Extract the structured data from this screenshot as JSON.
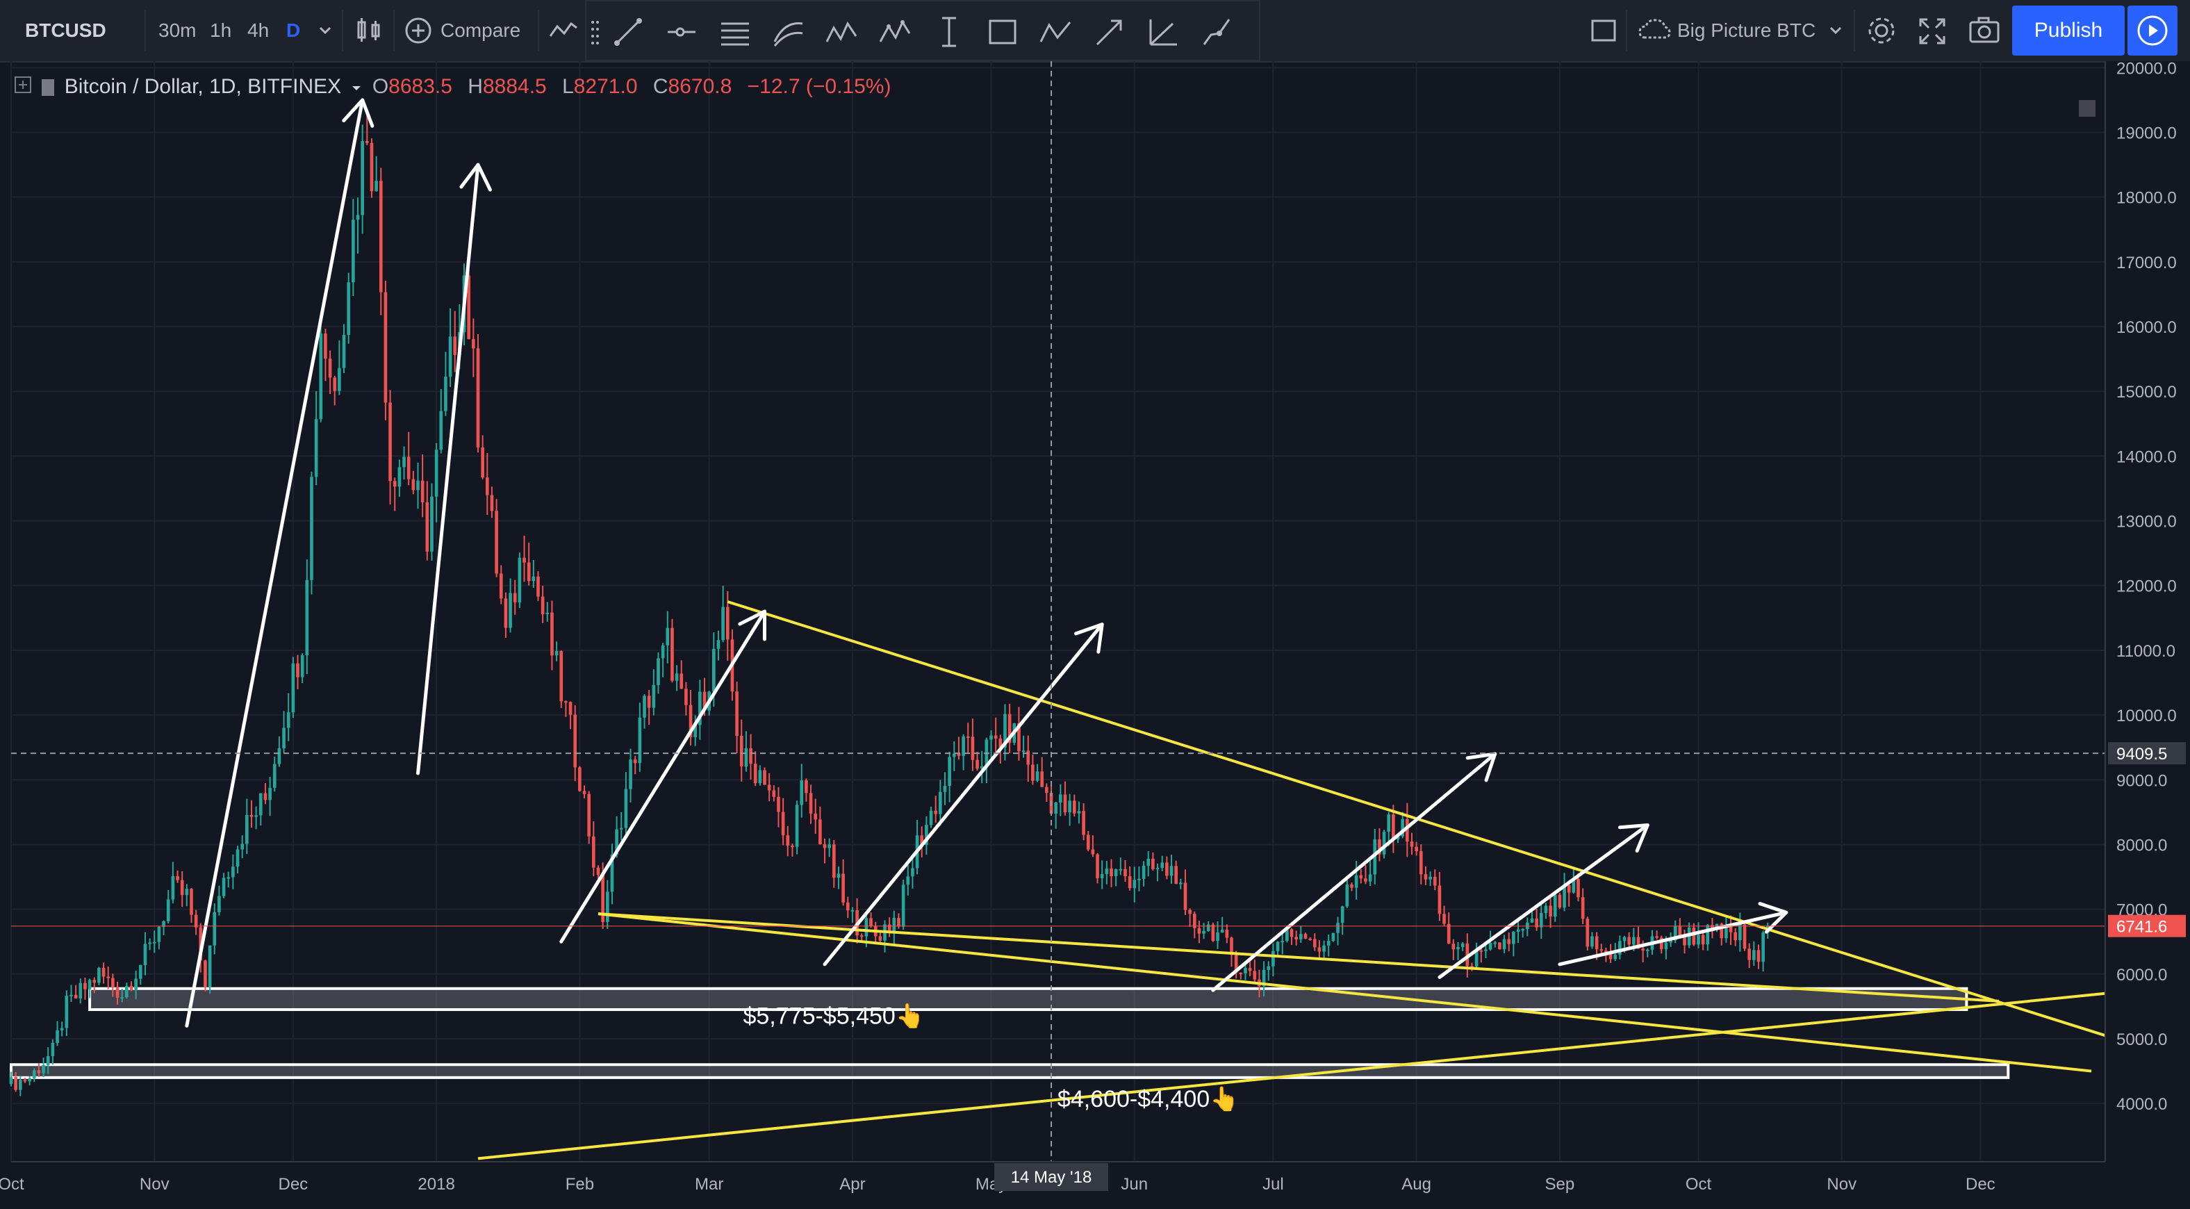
{
  "toolbar": {
    "symbol": "BTCUSD",
    "intervals": [
      "30m",
      "1h",
      "4h",
      "D"
    ],
    "active_interval": "D",
    "compare_label": "Compare",
    "layout_name": "Big Picture BTC",
    "publish_label": "Publish",
    "drawing_tools": [
      "trend-line-icon",
      "horizontal-ray-icon",
      "parallel-channel-icon",
      "fib-retracement-icon",
      "xabcd-pattern-icon",
      "elliott-wave-icon",
      "date-range-icon",
      "rectangle-icon",
      "abcd-pattern-icon",
      "arrow-icon",
      "gann-icon",
      "brush-icon"
    ]
  },
  "legend": {
    "title": "Bitcoin / Dollar, 1D, BITFINEX",
    "o_label": "O",
    "o_value": "8683.5",
    "h_label": "H",
    "h_value": "8884.5",
    "l_label": "L",
    "l_value": "8271.0",
    "c_label": "C",
    "c_value": "8670.8",
    "change": "−12.7 (−0.15%)"
  },
  "colors": {
    "background": "#131722",
    "up_candle": "#26a69a",
    "down_candle": "#ef5350",
    "trendline": "#f5e642",
    "arrow": "#ffffff",
    "accent": "#2962ff"
  },
  "chart_data": {
    "type": "candlestick",
    "title": "Bitcoin / Dollar, 1D, BITFINEX",
    "x_type": "date",
    "xlim": [
      "2017-10-01",
      "2018-12-28"
    ],
    "ylim": [
      3100,
      20100
    ],
    "y_ticks": [
      4000,
      5000,
      6000,
      7000,
      8000,
      9000,
      10000,
      11000,
      12000,
      13000,
      14000,
      15000,
      16000,
      17000,
      18000,
      19000,
      20000
    ],
    "y_tick_labels": [
      "4000.0",
      "5000.0",
      "6000.0",
      "7000.0",
      "8000.0",
      "9000.0",
      "10000.0",
      "11000.0",
      "12000.0",
      "13000.0",
      "14000.0",
      "15000.0",
      "16000.0",
      "17000.0",
      "18000.0",
      "19000.0",
      "20000.0"
    ],
    "x_ticks": [
      {
        "date": "2017-10-01",
        "label": "Oct"
      },
      {
        "date": "2017-11-01",
        "label": "Nov"
      },
      {
        "date": "2017-12-01",
        "label": "Dec"
      },
      {
        "date": "2018-01-01",
        "label": "2018"
      },
      {
        "date": "2018-02-01",
        "label": "Feb"
      },
      {
        "date": "2018-03-01",
        "label": "Mar"
      },
      {
        "date": "2018-04-01",
        "label": "Apr"
      },
      {
        "date": "2018-05-01",
        "label": "May"
      },
      {
        "date": "2018-06-01",
        "label": "Jun"
      },
      {
        "date": "2018-07-01",
        "label": "Jul"
      },
      {
        "date": "2018-08-01",
        "label": "Aug"
      },
      {
        "date": "2018-09-01",
        "label": "Sep"
      },
      {
        "date": "2018-10-01",
        "label": "Oct"
      },
      {
        "date": "2018-11-01",
        "label": "Nov"
      },
      {
        "date": "2018-12-01",
        "label": "Dec"
      }
    ],
    "price_path": [
      [
        "2017-10-01",
        4300
      ],
      [
        "2017-10-05",
        4400
      ],
      [
        "2017-10-10",
        4800
      ],
      [
        "2017-10-13",
        5500
      ],
      [
        "2017-10-20",
        6000
      ],
      [
        "2017-10-25",
        5700
      ],
      [
        "2017-10-31",
        6400
      ],
      [
        "2017-11-05",
        7300
      ],
      [
        "2017-11-08",
        7200
      ],
      [
        "2017-11-12",
        5900
      ],
      [
        "2017-11-15",
        7300
      ],
      [
        "2017-11-20",
        8200
      ],
      [
        "2017-11-25",
        8700
      ],
      [
        "2017-11-29",
        10000
      ],
      [
        "2017-12-03",
        11200
      ],
      [
        "2017-12-07",
        16000
      ],
      [
        "2017-12-10",
        15000
      ],
      [
        "2017-12-13",
        17000
      ],
      [
        "2017-12-17",
        19200
      ],
      [
        "2017-12-19",
        18000
      ],
      [
        "2017-12-22",
        13800
      ],
      [
        "2017-12-25",
        14000
      ],
      [
        "2017-12-30",
        12800
      ],
      [
        "2018-01-03",
        15000
      ],
      [
        "2018-01-07",
        16800
      ],
      [
        "2018-01-10",
        14500
      ],
      [
        "2018-01-16",
        11200
      ],
      [
        "2018-01-20",
        12700
      ],
      [
        "2018-01-25",
        11300
      ],
      [
        "2018-02-01",
        9100
      ],
      [
        "2018-02-06",
        6900
      ],
      [
        "2018-02-10",
        8500
      ],
      [
        "2018-02-15",
        10100
      ],
      [
        "2018-02-20",
        11100
      ],
      [
        "2018-02-25",
        9600
      ],
      [
        "2018-03-04",
        11400
      ],
      [
        "2018-03-08",
        9300
      ],
      [
        "2018-03-13",
        9100
      ],
      [
        "2018-03-18",
        7900
      ],
      [
        "2018-03-21",
        8800
      ],
      [
        "2018-03-26",
        8000
      ],
      [
        "2018-03-31",
        6900
      ],
      [
        "2018-04-06",
        6600
      ],
      [
        "2018-04-11",
        6900
      ],
      [
        "2018-04-15",
        8000
      ],
      [
        "2018-04-20",
        8800
      ],
      [
        "2018-04-24",
        9500
      ],
      [
        "2018-04-28",
        9300
      ],
      [
        "2018-05-05",
        9800
      ],
      [
        "2018-05-10",
        9100
      ],
      [
        "2018-05-14",
        8700
      ],
      [
        "2018-05-20",
        8400
      ],
      [
        "2018-05-24",
        7600
      ],
      [
        "2018-05-31",
        7500
      ],
      [
        "2018-06-05",
        7600
      ],
      [
        "2018-06-10",
        7600
      ],
      [
        "2018-06-12",
        6800
      ],
      [
        "2018-06-18",
        6700
      ],
      [
        "2018-06-24",
        6100
      ],
      [
        "2018-06-28",
        5900
      ],
      [
        "2018-07-02",
        6500
      ],
      [
        "2018-07-08",
        6700
      ],
      [
        "2018-07-12",
        6300
      ],
      [
        "2018-07-17",
        7300
      ],
      [
        "2018-07-21",
        7400
      ],
      [
        "2018-07-25",
        8300
      ],
      [
        "2018-07-29",
        8200
      ],
      [
        "2018-08-04",
        7400
      ],
      [
        "2018-08-08",
        6500
      ],
      [
        "2018-08-11",
        6300
      ],
      [
        "2018-08-15",
        6200
      ],
      [
        "2018-08-20",
        6500
      ],
      [
        "2018-08-26",
        6700
      ],
      [
        "2018-09-01",
        7100
      ],
      [
        "2018-09-04",
        7300
      ],
      [
        "2018-09-07",
        6500
      ],
      [
        "2018-09-11",
        6300
      ],
      [
        "2018-09-15",
        6500
      ],
      [
        "2018-09-20",
        6400
      ],
      [
        "2018-09-26",
        6600
      ],
      [
        "2018-10-01",
        6600
      ],
      [
        "2018-10-06",
        6600
      ],
      [
        "2018-10-10",
        6600
      ],
      [
        "2018-10-12",
        6250
      ],
      [
        "2018-10-14",
        6200
      ],
      [
        "2018-10-16",
        6741.6
      ]
    ],
    "last_price": 6741.6,
    "last_price_label": "6741.6",
    "crosshair": {
      "date": "2018-05-14",
      "date_label": "14 May '18",
      "price": 9409.5,
      "price_label": "9409.5"
    },
    "trendlines": [
      {
        "name": "upper-wedge",
        "from": [
          "2018-03-05",
          11750
        ],
        "to": [
          "2018-12-28",
          5050
        ]
      },
      {
        "name": "lower-wedge-1",
        "from": [
          "2018-02-05",
          6930
        ],
        "to": [
          "2018-12-25",
          4500
        ]
      },
      {
        "name": "lower-wedge-2",
        "from": [
          "2018-02-05",
          6930
        ],
        "to": [
          "2018-12-05",
          5580
        ]
      },
      {
        "name": "rising-support",
        "from": [
          "2018-01-10",
          3150
        ],
        "to": [
          "2018-12-28",
          5700
        ]
      }
    ],
    "arrows": [
      {
        "from": [
          "2017-11-08",
          5200
        ],
        "to": [
          "2017-12-16",
          19500
        ]
      },
      {
        "from": [
          "2017-12-28",
          9100
        ],
        "to": [
          "2018-01-10",
          18500
        ]
      },
      {
        "from": [
          "2018-01-28",
          6500
        ],
        "to": [
          "2018-03-13",
          11600
        ]
      },
      {
        "from": [
          "2018-03-26",
          6150
        ],
        "to": [
          "2018-05-25",
          11400
        ]
      },
      {
        "from": [
          "2018-06-18",
          5750
        ],
        "to": [
          "2018-08-18",
          9400
        ]
      },
      {
        "from": [
          "2018-08-06",
          5950
        ],
        "to": [
          "2018-09-20",
          8300
        ]
      },
      {
        "from": [
          "2018-09-01",
          6150
        ],
        "to": [
          "2018-10-20",
          6950
        ]
      }
    ],
    "zones": [
      {
        "name": "zone-5775-5450",
        "from_date": "2017-10-18",
        "to_date": "2018-11-28",
        "low": 5450,
        "high": 5775,
        "label": "$5,775-$5,450👆",
        "label_date": "2018-03-28",
        "label_price": 5230
      },
      {
        "name": "zone-4600-4400",
        "from_date": "2017-10-01",
        "to_date": "2018-12-07",
        "low": 4400,
        "high": 4600,
        "label": "$4,600-$4,400👆",
        "label_date": "2018-06-04",
        "label_price": 3950
      }
    ]
  }
}
